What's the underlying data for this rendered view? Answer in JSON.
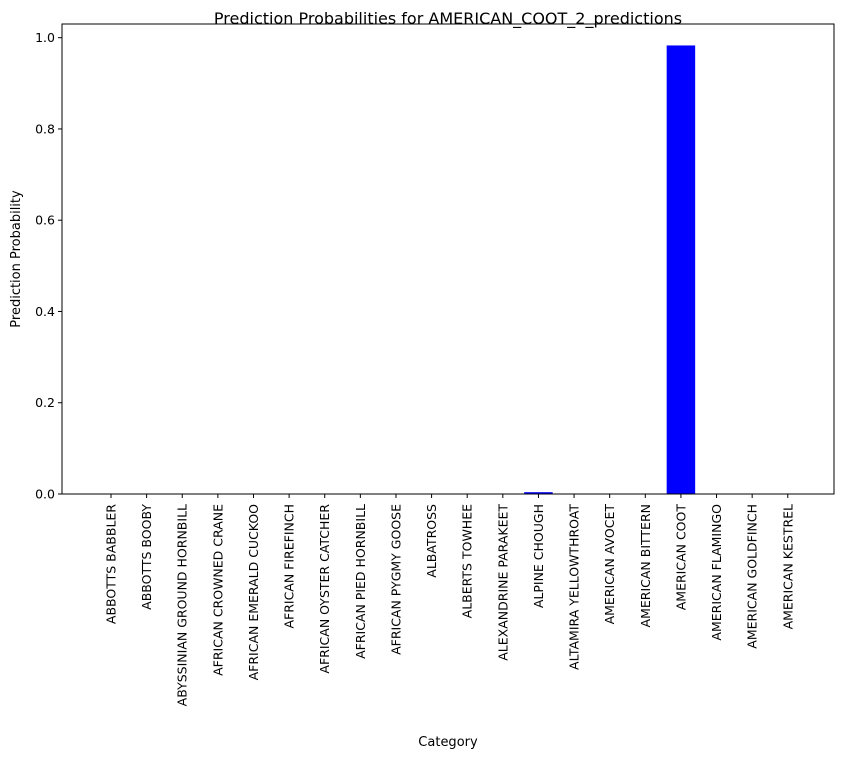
{
  "chart_data": {
    "type": "bar",
    "title": "Prediction Probabilities for AMERICAN_COOT_2_predictions",
    "xlabel": "Category",
    "ylabel": "Prediction Probability",
    "ylim": [
      0,
      1.03
    ],
    "yticks": [
      "0.0",
      "0.2",
      "0.4",
      "0.6",
      "0.8",
      "1.0"
    ],
    "ytick_values": [
      0,
      0.2,
      0.4,
      0.6,
      0.8,
      1.0
    ],
    "grid": false,
    "bar_color": "#0000ff",
    "categories": [
      "ABBOTTS BABBLER",
      "ABBOTTS BOOBY",
      "ABYSSINIAN GROUND HORNBILL",
      "AFRICAN CROWNED CRANE",
      "AFRICAN EMERALD CUCKOO",
      "AFRICAN FIREFINCH",
      "AFRICAN OYSTER CATCHER",
      "AFRICAN PIED HORNBILL",
      "AFRICAN PYGMY GOOSE",
      "ALBATROSS",
      "ALBERTS TOWHEE",
      "ALEXANDRINE PARAKEET",
      "ALPINE CHOUGH",
      "ALTAMIRA YELLOWTHROAT",
      "AMERICAN AVOCET",
      "AMERICAN BITTERN",
      "AMERICAN COOT",
      "AMERICAN FLAMINGO",
      "AMERICAN GOLDFINCH",
      "AMERICAN KESTREL"
    ],
    "values": [
      0.001,
      0.0,
      0.001,
      0.001,
      0.001,
      0.001,
      0.001,
      0.001,
      0.001,
      0.001,
      0.001,
      0.001,
      0.004,
      0.001,
      0.001,
      0.001,
      0.983,
      0.001,
      0.001,
      0.001
    ]
  }
}
